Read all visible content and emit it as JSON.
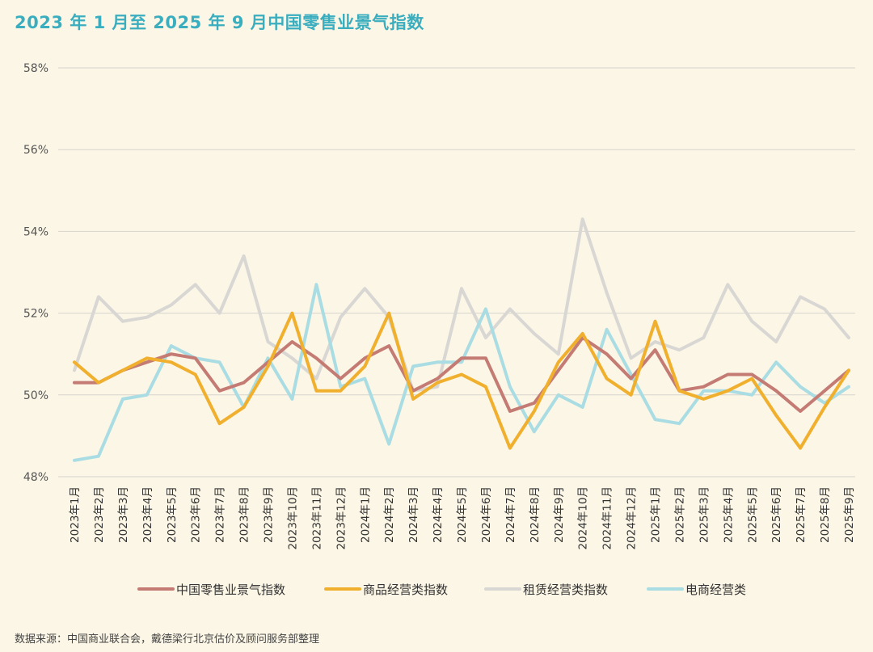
{
  "chart_data": {
    "type": "line",
    "title": "2023 年 1 月至 2025 年 9 月中国零售业景气指数",
    "source": "数据来源：中国商业联合会，戴德梁行北京估价及顾问服务部整理",
    "ylim": [
      48,
      58
    ],
    "yticks": [
      58,
      56,
      54,
      52,
      50,
      48
    ],
    "ytick_labels": [
      "58%",
      "56%",
      "54%",
      "52%",
      "50%",
      "48%"
    ],
    "grid": true,
    "legend_position": "bottom",
    "categories": [
      "2023年1月",
      "2023年2月",
      "2023年3月",
      "2023年4月",
      "2023年5月",
      "2023年6月",
      "2023年7月",
      "2023年8月",
      "2023年9月",
      "2023年10月",
      "2023年11月",
      "2023年12月",
      "2024年1月",
      "2024年2月",
      "2024年3月",
      "2024年4月",
      "2024年5月",
      "2024年6月",
      "2024年7月",
      "2024年8月",
      "2024年9月",
      "2024年10月",
      "2024年11月",
      "2024年12月",
      "2025年1月",
      "2025年2月",
      "2025年3月",
      "2025年4月",
      "2025年5月",
      "2025年6月",
      "2025年7月",
      "2025年8月",
      "2025年9月"
    ],
    "series": [
      {
        "name": "中国零售业景气指数",
        "color": "#c47b73",
        "values": [
          50.3,
          50.3,
          50.6,
          50.8,
          51.0,
          50.9,
          50.1,
          50.3,
          50.8,
          51.3,
          50.9,
          50.4,
          50.9,
          51.2,
          50.1,
          50.4,
          50.9,
          50.9,
          49.6,
          49.8,
          50.6,
          51.4,
          51.0,
          50.4,
          51.1,
          50.1,
          50.2,
          50.5,
          50.5,
          50.1,
          49.6,
          50.1,
          50.6
        ]
      },
      {
        "name": "商品经营类指数",
        "color": "#f0b02e",
        "values": [
          50.8,
          50.3,
          50.6,
          50.9,
          50.8,
          50.5,
          49.3,
          49.7,
          50.7,
          52.0,
          50.1,
          50.1,
          50.7,
          52.0,
          49.9,
          50.3,
          50.5,
          50.2,
          48.7,
          49.6,
          50.8,
          51.5,
          50.4,
          50.0,
          51.8,
          50.1,
          49.9,
          50.1,
          50.4,
          49.5,
          48.7,
          49.7,
          50.6
        ]
      },
      {
        "name": "租赁经营类指数",
        "color": "#d9d7d3",
        "values": [
          50.6,
          52.4,
          51.8,
          51.9,
          52.2,
          52.7,
          52.0,
          53.4,
          51.3,
          50.9,
          50.4,
          51.9,
          52.6,
          51.9,
          50.1,
          50.2,
          52.6,
          51.4,
          52.1,
          51.5,
          51.0,
          54.3,
          52.5,
          50.9,
          51.3,
          51.1,
          51.4,
          52.7,
          51.8,
          51.3,
          52.4,
          52.1,
          51.4
        ]
      },
      {
        "name": "电商经营类",
        "color": "#a9dde3",
        "values": [
          48.4,
          48.5,
          49.9,
          50.0,
          51.2,
          50.9,
          50.8,
          49.7,
          50.9,
          49.9,
          52.7,
          50.2,
          50.4,
          48.8,
          50.7,
          50.8,
          50.8,
          52.1,
          50.2,
          49.1,
          50.0,
          49.7,
          51.6,
          50.5,
          49.4,
          49.3,
          50.1,
          50.1,
          50.0,
          50.8,
          50.2,
          49.8,
          50.2
        ]
      }
    ]
  }
}
